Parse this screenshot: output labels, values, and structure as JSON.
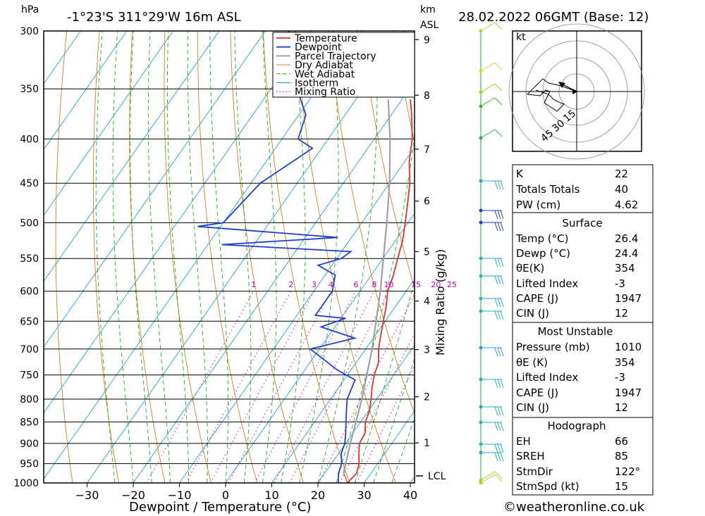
{
  "header": {
    "hpa": "hPa",
    "location": "-1°23'S  311°29'W  16m  ASL",
    "km": "km",
    "asl": "ASL",
    "datetime": "28.02.2022  06GMT  (Base: 12)"
  },
  "chart_data": {
    "type": "skew-t log-p sounding",
    "xlabel": "Dewpoint / Temperature (°C)",
    "y2label": "Mixing Ratio (g/kg)",
    "pressure_levels": [
      300,
      350,
      400,
      450,
      500,
      550,
      600,
      650,
      700,
      750,
      800,
      850,
      900,
      950,
      1000
    ],
    "temp_ticks": [
      -30,
      -20,
      -10,
      0,
      10,
      20,
      30,
      40
    ],
    "km_ticks": [
      1,
      2,
      3,
      4,
      5,
      6,
      7,
      8,
      9
    ],
    "km_pressures": [
      899,
      795,
      701,
      616,
      540,
      472,
      411,
      356,
      307
    ],
    "lcl_label": "LCL",
    "lcl_pressure": 973,
    "mixing_ratio_labels": [
      "1",
      "2",
      "3",
      "4",
      "6",
      "8",
      "10",
      "15",
      "20",
      "25"
    ],
    "legend": [
      "Temperature",
      "Dewpoint",
      "Parcel Trajectory",
      "Dry Adiabat",
      "Wet Adiabat",
      "Isotherm",
      "Mixing Ratio"
    ],
    "colors": {
      "temperature": "#e03030",
      "dewpoint": "#2040d0",
      "parcel": "#a0a0a0",
      "dry_adiabat": "#d08020",
      "wet_adiabat": "#20b020",
      "isotherm": "#20a0d0",
      "mixing_ratio": "#c000c0"
    },
    "temperature": [
      {
        "p": 1000,
        "t": 26.4
      },
      {
        "p": 975,
        "t": 26.9
      },
      {
        "p": 950,
        "t": 26.0
      },
      {
        "p": 925,
        "t": 24.4
      },
      {
        "p": 900,
        "t": 23.0
      },
      {
        "p": 875,
        "t": 22.6
      },
      {
        "p": 850,
        "t": 21.0
      },
      {
        "p": 825,
        "t": 20.2
      },
      {
        "p": 800,
        "t": 18.8
      },
      {
        "p": 775,
        "t": 17.2
      },
      {
        "p": 750,
        "t": 15.8
      },
      {
        "p": 725,
        "t": 14.8
      },
      {
        "p": 700,
        "t": 12.8
      },
      {
        "p": 675,
        "t": 11.2
      },
      {
        "p": 650,
        "t": 9.6
      },
      {
        "p": 625,
        "t": 8.0
      },
      {
        "p": 600,
        "t": 6.0
      },
      {
        "p": 575,
        "t": 4.8
      },
      {
        "p": 550,
        "t": 3.2
      },
      {
        "p": 525,
        "t": 1.6
      },
      {
        "p": 500,
        "t": -0.6
      },
      {
        "p": 475,
        "t": -3.0
      },
      {
        "p": 450,
        "t": -5.6
      },
      {
        "p": 425,
        "t": -9.0
      },
      {
        "p": 400,
        "t": -11.8
      },
      {
        "p": 375,
        "t": -15.6
      },
      {
        "p": 360,
        "t": -18.2
      }
    ],
    "dewpoint": [
      {
        "p": 1000,
        "t": 24.4
      },
      {
        "p": 975,
        "t": 23.0
      },
      {
        "p": 950,
        "t": 22.2
      },
      {
        "p": 925,
        "t": 20.6
      },
      {
        "p": 900,
        "t": 19.8
      },
      {
        "p": 875,
        "t": 18.4
      },
      {
        "p": 850,
        "t": 16.8
      },
      {
        "p": 825,
        "t": 15.2
      },
      {
        "p": 800,
        "t": 13.6
      },
      {
        "p": 760,
        "t": 12.4
      },
      {
        "p": 740,
        "t": 7.0
      },
      {
        "p": 700,
        "t": -2.0
      },
      {
        "p": 680,
        "t": 6.0
      },
      {
        "p": 660,
        "t": -3.0
      },
      {
        "p": 645,
        "t": 1.0
      },
      {
        "p": 640,
        "t": -6.0
      },
      {
        "p": 600,
        "t": -6.0
      },
      {
        "p": 575,
        "t": -7.8
      },
      {
        "p": 560,
        "t": -13.0
      },
      {
        "p": 550,
        "t": -9.0
      },
      {
        "p": 540,
        "t": -8.0
      },
      {
        "p": 530,
        "t": -37.0
      },
      {
        "p": 520,
        "t": -13.0
      },
      {
        "p": 505,
        "t": -45.0
      },
      {
        "p": 500,
        "t": -40.0
      },
      {
        "p": 450,
        "t": -38.0
      },
      {
        "p": 410,
        "t": -32.0
      },
      {
        "p": 400,
        "t": -36.5
      },
      {
        "p": 375,
        "t": -38.5
      },
      {
        "p": 360,
        "t": -42.0
      },
      {
        "p": 330,
        "t": -48.0
      },
      {
        "p": 300,
        "t": -55.0
      }
    ],
    "parcel": [
      {
        "p": 1000,
        "t": 26.4
      },
      {
        "p": 973,
        "t": 24.0
      },
      {
        "p": 900,
        "t": 21.0
      },
      {
        "p": 800,
        "t": 16.8
      },
      {
        "p": 700,
        "t": 11.4
      },
      {
        "p": 600,
        "t": 4.4
      },
      {
        "p": 500,
        "t": -4.6
      },
      {
        "p": 450,
        "t": -10.0
      },
      {
        "p": 400,
        "t": -16.6
      },
      {
        "p": 360,
        "t": -23.0
      }
    ]
  },
  "hodograph": {
    "unit": "kt",
    "ring_labels": [
      "15",
      "30",
      "45"
    ]
  },
  "indices": {
    "K": {
      "label": "K",
      "value": "22"
    },
    "TT": {
      "label": "Totals Totals",
      "value": "40"
    },
    "PW": {
      "label": "PW (cm)",
      "value": "4.62"
    }
  },
  "surface": {
    "title": "Surface",
    "temp": {
      "label": "Temp (°C)",
      "value": "26.4"
    },
    "dewp": {
      "label": "Dewp (°C)",
      "value": "24.4"
    },
    "theta": {
      "label": "θE(K)",
      "value": "354"
    },
    "li": {
      "label": "Lifted Index",
      "value": "-3"
    },
    "cape": {
      "label": "CAPE (J)",
      "value": "1947"
    },
    "cin": {
      "label": "CIN (J)",
      "value": "12"
    }
  },
  "most_unstable": {
    "title": "Most Unstable",
    "pressure": {
      "label": "Pressure (mb)",
      "value": "1010"
    },
    "theta": {
      "label": "θE (K)",
      "value": "354"
    },
    "li": {
      "label": "Lifted Index",
      "value": "-3"
    },
    "cape": {
      "label": "CAPE (J)",
      "value": "1947"
    },
    "cin": {
      "label": "CIN (J)",
      "value": "12"
    }
  },
  "hodo_table": {
    "title": "Hodograph",
    "eh": {
      "label": "EH",
      "value": "66"
    },
    "sreh": {
      "label": "SREH",
      "value": "85"
    },
    "stmdir": {
      "label": "StmDir",
      "value": "122°"
    },
    "stmspd": {
      "label": "StmSpd (kt)",
      "value": "15"
    }
  },
  "credit": "©weatheronline.co.uk"
}
